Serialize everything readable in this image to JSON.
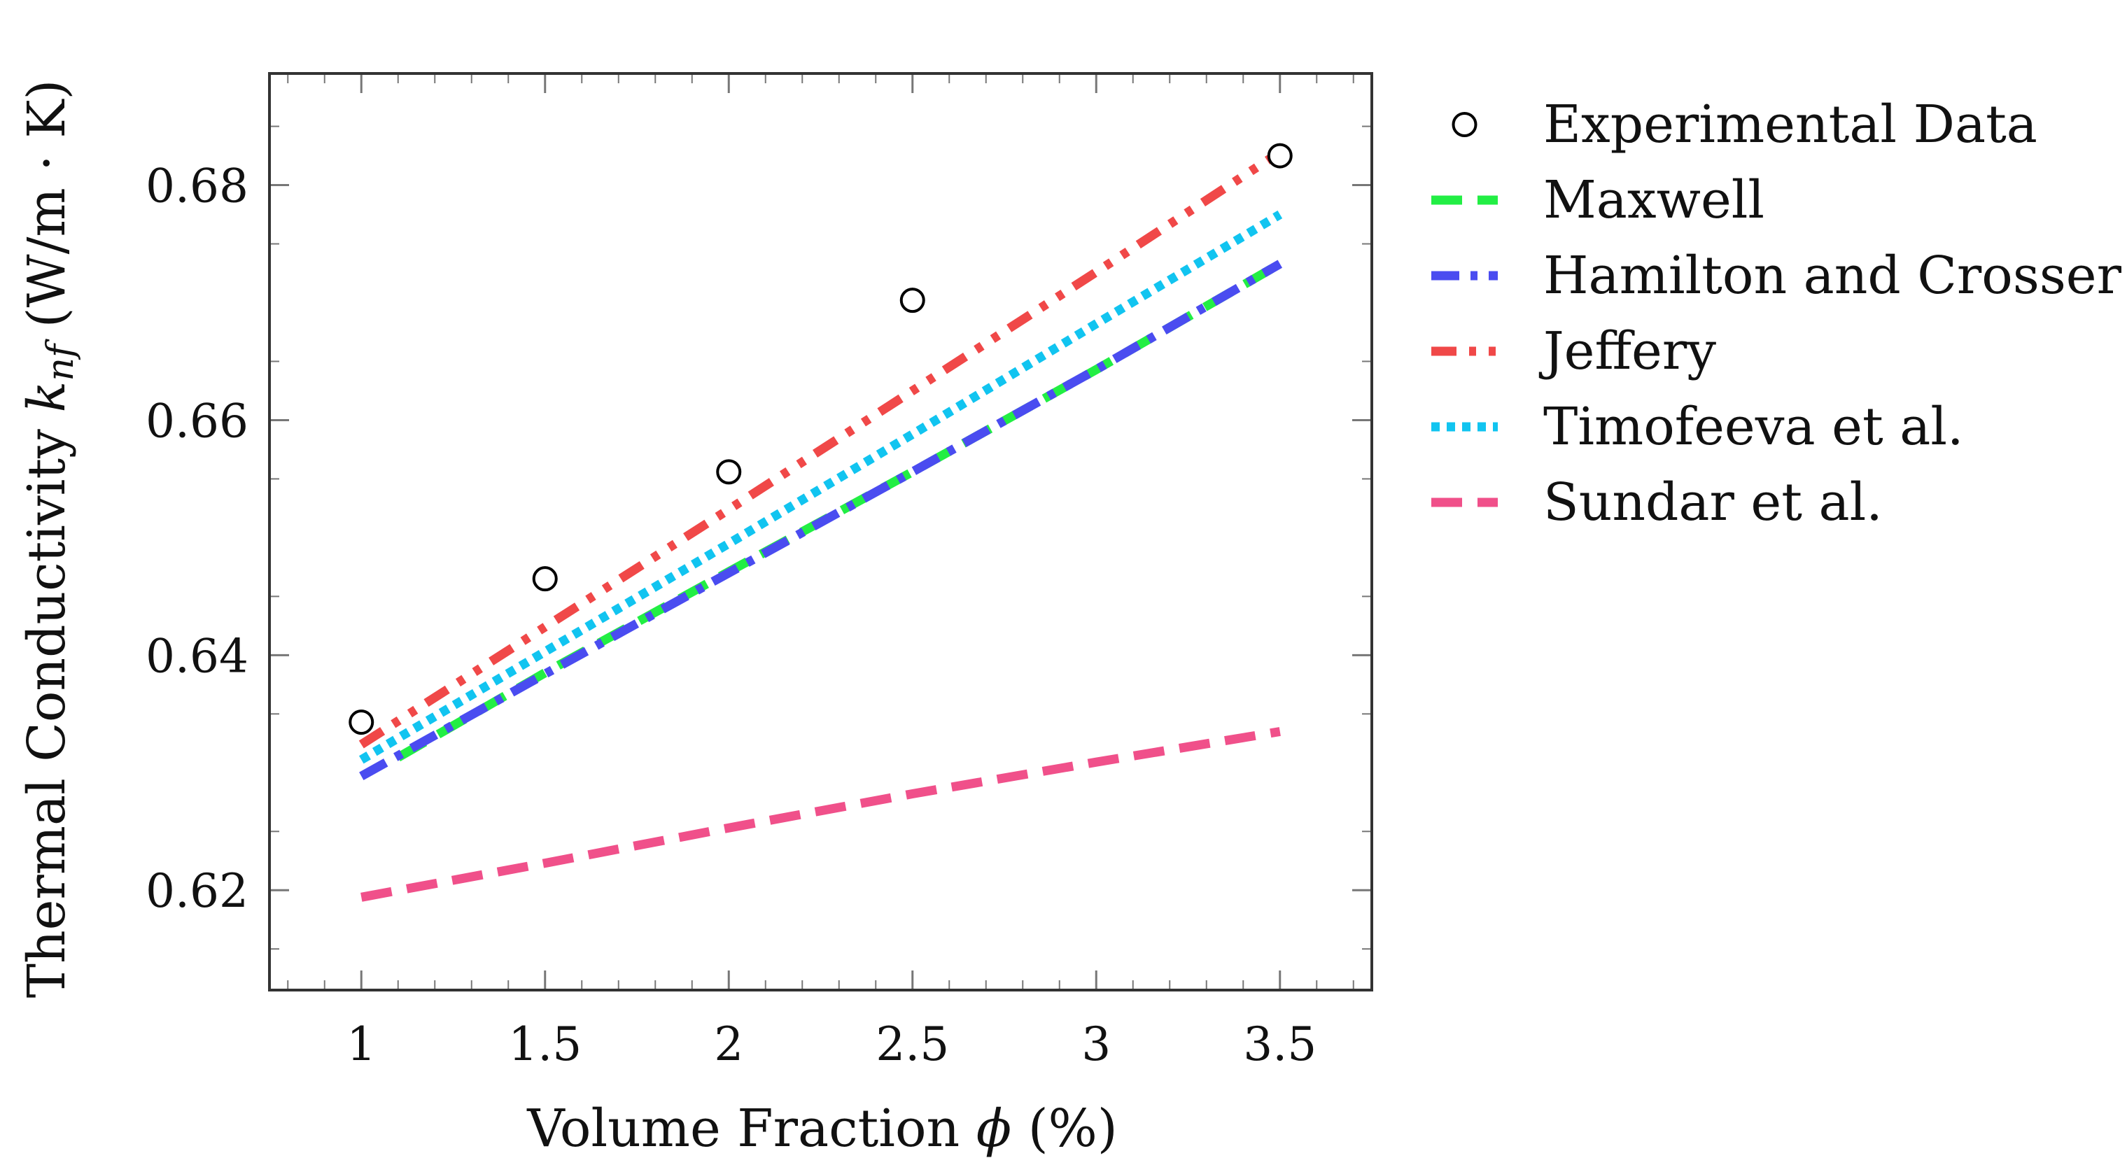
{
  "chart_data": {
    "type": "line",
    "title": "",
    "xlabel": "Volume Fraction",
    "xlabel_symbol": "ϕ",
    "xlabel_unit": "(%)",
    "ylabel": "Thermal Conductivity",
    "ylabel_symbol": "k",
    "ylabel_subscript": "nf",
    "ylabel_unit": "(W/m · K)",
    "xlim": [
      0.75,
      3.75
    ],
    "ylim": [
      0.6115,
      0.6895
    ],
    "x_ticks": [
      1,
      1.5,
      2,
      2.5,
      3,
      3.5
    ],
    "x_tick_labels": [
      "1",
      "1.5",
      "2",
      "2.5",
      "3",
      "3.5"
    ],
    "y_ticks": [
      0.62,
      0.64,
      0.66,
      0.68
    ],
    "y_tick_labels": [
      "0.62",
      "0.64",
      "0.66",
      "0.68"
    ],
    "legend_position": "outside-right",
    "series": [
      {
        "name": "Experimental Data",
        "kind": "scatter",
        "marker": "circle-open",
        "color": "#000000",
        "x": [
          1,
          1.5,
          2,
          2.5,
          3.5
        ],
        "values": [
          0.6343,
          0.6465,
          0.6556,
          0.6702,
          0.6825
        ]
      },
      {
        "name": "Maxwell",
        "kind": "line",
        "dash": "dashed",
        "color": "#22ee44",
        "x": [
          1.1,
          1.5,
          2,
          2.5,
          3,
          3.5
        ],
        "values": [
          0.6313,
          0.6385,
          0.6471,
          0.6556,
          0.6643,
          0.6733
        ]
      },
      {
        "name": "Hamilton and Crosser",
        "kind": "line",
        "dash": "dash-dot",
        "color": "#4a4cf0",
        "x": [
          1,
          1.5,
          2,
          2.5,
          3,
          3.5
        ],
        "values": [
          0.6297,
          0.6384,
          0.647,
          0.6556,
          0.6643,
          0.6733
        ]
      },
      {
        "name": "Jeffery",
        "kind": "line",
        "dash": "dash-dot-dot",
        "color": "#f04848",
        "x": [
          1,
          1.5,
          2,
          2.5,
          3,
          3.5
        ],
        "values": [
          0.6324,
          0.6424,
          0.6524,
          0.6625,
          0.6726,
          0.6828
        ]
      },
      {
        "name": "Timofeeva et al.",
        "kind": "line",
        "dash": "dotted",
        "color": "#11c4f0",
        "x": [
          1,
          1.5,
          2,
          2.5,
          3,
          3.5
        ],
        "values": [
          0.6311,
          0.6403,
          0.6495,
          0.6588,
          0.6682,
          0.6775
        ]
      },
      {
        "name": "Sundar et al.",
        "kind": "line",
        "dash": "dashed",
        "color": "#f0508a",
        "x": [
          1,
          1.5,
          2,
          2.5,
          3,
          3.5
        ],
        "values": [
          0.6194,
          0.6223,
          0.6253,
          0.6282,
          0.6309,
          0.6335
        ]
      }
    ]
  }
}
